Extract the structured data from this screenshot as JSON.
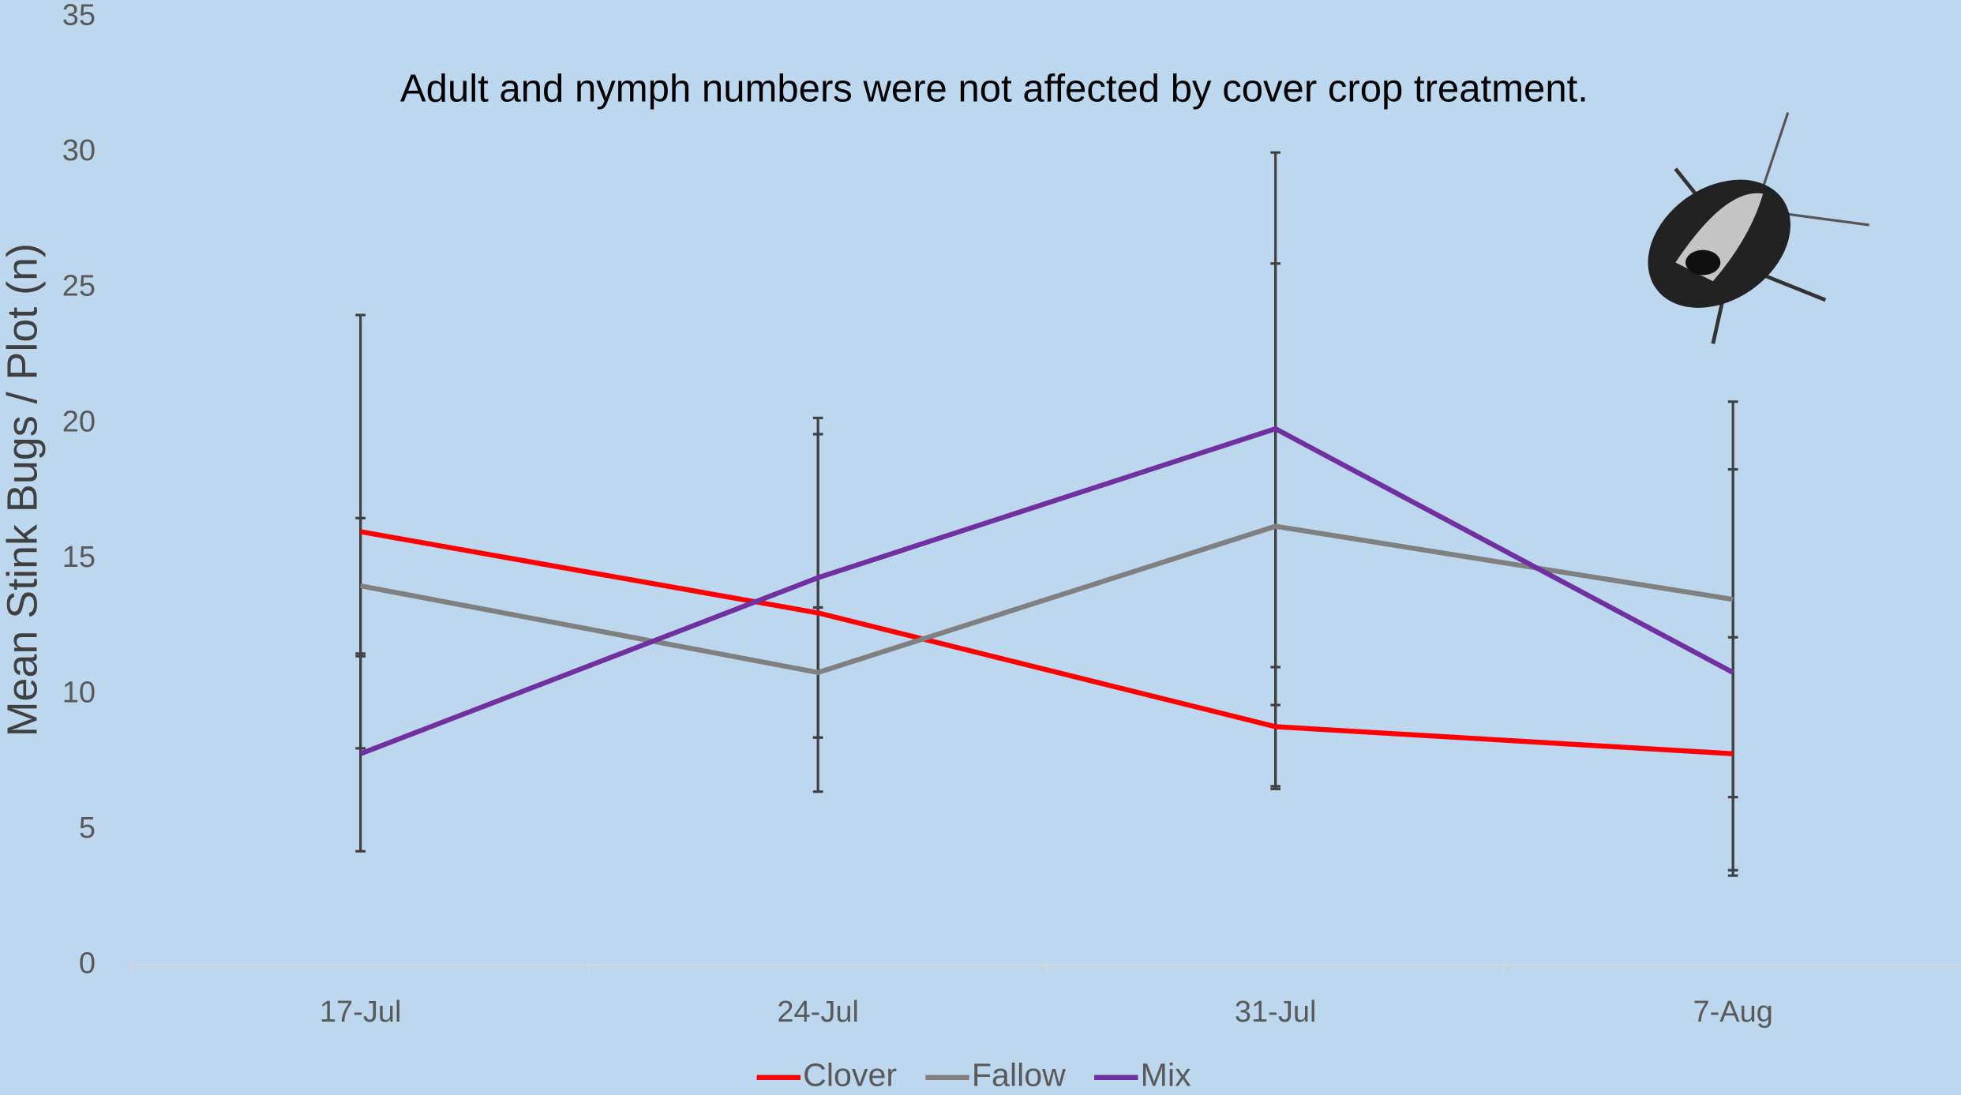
{
  "chart_data": {
    "type": "line",
    "title": "Adult and nymph numbers were not affected by cover crop treatment.",
    "y_label": "Mean Stink Bugs / Plot (n)",
    "categories": [
      "17-Jul",
      "24-Jul",
      "31-Jul",
      "7-Aug"
    ],
    "series": [
      {
        "name": "Clover",
        "color": "#ff0000",
        "values": [
          16,
          13,
          8.8,
          7.8
        ],
        "errors": [
          8,
          6.6,
          2.2,
          4.3
        ]
      },
      {
        "name": "Fallow",
        "color": "#808080",
        "values": [
          14,
          10.8,
          16.2,
          13.5
        ],
        "errors": [
          2.5,
          2.4,
          9.7,
          7.3
        ]
      },
      {
        "name": "Mix",
        "color": "#7030a0",
        "values": [
          7.8,
          14.3,
          19.8,
          10.8
        ],
        "errors": [
          3.6,
          5.9,
          10.2,
          7.5
        ]
      }
    ],
    "ylim": [
      0,
      35
    ],
    "yticks": [
      0,
      5,
      10,
      15,
      20,
      25,
      30,
      35
    ],
    "grid": false,
    "legend": "bottom"
  }
}
